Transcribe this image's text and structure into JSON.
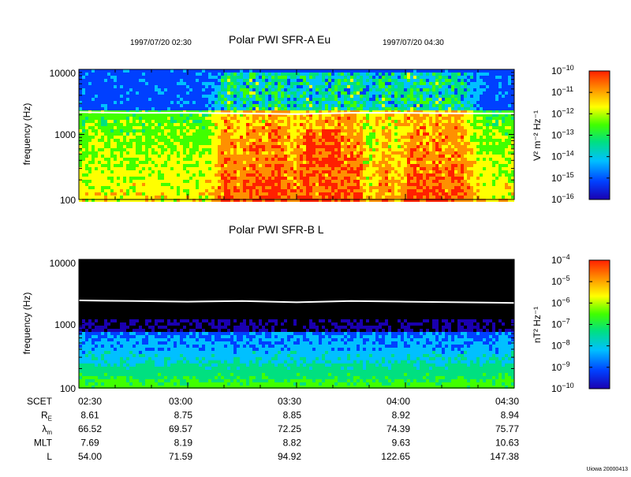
{
  "header": {
    "start_time": "1997/07/20 02:30",
    "title_a": "Polar PWI SFR-A Eu",
    "end_time": "1997/07/20 04:30"
  },
  "colors": {
    "background": "#ffffff",
    "panel_b_background": "#000000",
    "line": "#ffffff",
    "colormap": [
      "#1a00b0",
      "#0040ff",
      "#00c0ff",
      "#00e080",
      "#40ff00",
      "#ffff00",
      "#ff9000",
      "#ff2000"
    ]
  },
  "chart_data": [
    {
      "type": "heatmap",
      "title": "",
      "ylabel": "frequency (Hz)",
      "yscale": "log",
      "ylim": [
        100,
        10000
      ],
      "yticks": [
        "10000",
        "1000",
        "100"
      ],
      "xlim": [
        "02:30",
        "04:30"
      ],
      "colorbar": {
        "label": "V² m⁻² Hz⁻¹",
        "scale": "log",
        "range": [
          1e-16,
          1e-10
        ],
        "ticks": [
          {
            "base": "10",
            "exp": "−10"
          },
          {
            "base": "10",
            "exp": "−11"
          },
          {
            "base": "10",
            "exp": "−12"
          },
          {
            "base": "10",
            "exp": "−13"
          },
          {
            "base": "10",
            "exp": "−14"
          },
          {
            "base": "10",
            "exp": "−15"
          },
          {
            "base": "10",
            "exp": "−16"
          }
        ]
      },
      "overlay_line": {
        "description": "white trace",
        "x": [
          "02:30",
          "02:45",
          "03:00",
          "03:15",
          "03:30",
          "03:45",
          "04:00",
          "04:15",
          "04:30"
        ],
        "y_hz": [
          2200,
          2150,
          2150,
          2100,
          2050,
          2150,
          2150,
          2100,
          2100
        ]
      }
    },
    {
      "type": "heatmap",
      "title": "Polar PWI SFR-B L",
      "ylabel": "frequency (Hz)",
      "yscale": "log",
      "ylim": [
        100,
        10000
      ],
      "yticks": [
        "10000",
        "1000",
        "100"
      ],
      "xlim": [
        "02:30",
        "04:30"
      ],
      "colorbar": {
        "label": "nT² Hz⁻¹",
        "scale": "log",
        "range": [
          1e-10,
          0.0001
        ],
        "ticks": [
          {
            "base": "10",
            "exp": "−4"
          },
          {
            "base": "10",
            "exp": "−5"
          },
          {
            "base": "10",
            "exp": "−6"
          },
          {
            "base": "10",
            "exp": "−7"
          },
          {
            "base": "10",
            "exp": "−8"
          },
          {
            "base": "10",
            "exp": "−9"
          },
          {
            "base": "10",
            "exp": "−10"
          }
        ]
      },
      "overlay_line": {
        "description": "white trace",
        "x": [
          "02:30",
          "02:45",
          "03:00",
          "03:15",
          "03:30",
          "03:45",
          "04:00",
          "04:15",
          "04:30"
        ],
        "y_hz": [
          2300,
          2250,
          2200,
          2250,
          2150,
          2250,
          2200,
          2150,
          2100
        ]
      }
    }
  ],
  "ephemeris": {
    "rows": [
      {
        "label": "SCET",
        "sub": "",
        "values": [
          "02:30",
          "03:00",
          "03:30",
          "04:00",
          "04:30"
        ]
      },
      {
        "label": "R",
        "sub": "E",
        "values": [
          "8.61",
          "8.75",
          "8.85",
          "8.92",
          "8.94"
        ]
      },
      {
        "label": "λ",
        "sub": "m",
        "values": [
          "66.52",
          "69.57",
          "72.25",
          "74.39",
          "75.77"
        ]
      },
      {
        "label": "MLT",
        "sub": "",
        "values": [
          "7.69",
          "8.19",
          "8.82",
          "9.63",
          "10.63"
        ]
      },
      {
        "label": "L",
        "sub": "",
        "values": [
          "54.00",
          "71.59",
          "94.92",
          "122.65",
          "147.38"
        ]
      }
    ]
  },
  "footer": {
    "credit": "Uiowa 20000413"
  }
}
